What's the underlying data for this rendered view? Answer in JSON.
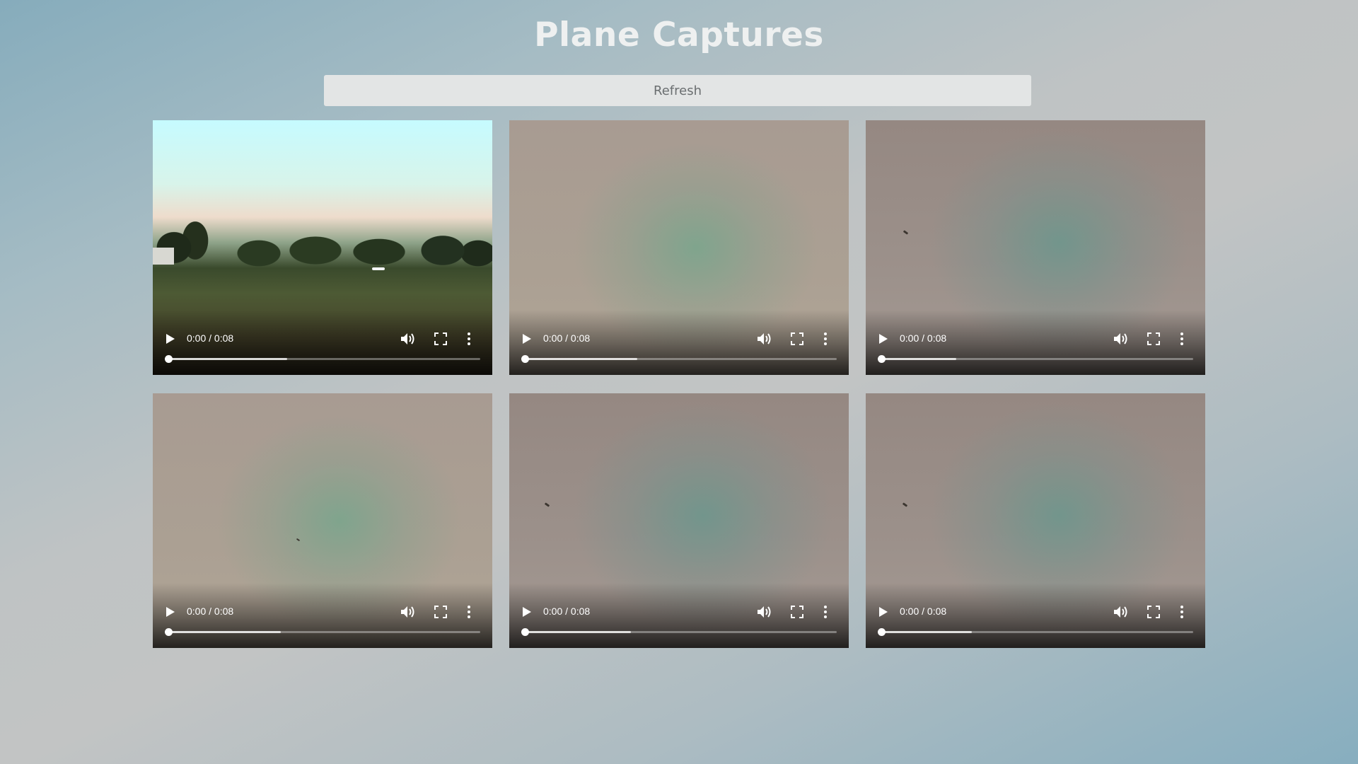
{
  "page": {
    "title": "Plane Captures",
    "refresh_label": "Refresh"
  },
  "videos": [
    {
      "time": "0:00 / 0:08",
      "buffered_fraction": 0.38,
      "frame": "field"
    },
    {
      "time": "0:00 / 0:08",
      "buffered_fraction": 0.36,
      "frame": "tan"
    },
    {
      "time": "0:00 / 0:08",
      "buffered_fraction": 0.24,
      "frame": "mauve"
    },
    {
      "time": "0:00 / 0:08",
      "buffered_fraction": 0.36,
      "frame": "tan"
    },
    {
      "time": "0:00 / 0:08",
      "buffered_fraction": 0.34,
      "frame": "mauve"
    },
    {
      "time": "0:00 / 0:08",
      "buffered_fraction": 0.29,
      "frame": "mauve"
    }
  ],
  "icons": {
    "play": "play-icon",
    "volume": "volume-icon",
    "fullscreen": "fullscreen-icon",
    "more": "more-options-icon"
  },
  "colors": {
    "title": "#eef0f0",
    "refresh_bg": "#e3e5e5",
    "refresh_text": "#6a6e70"
  }
}
